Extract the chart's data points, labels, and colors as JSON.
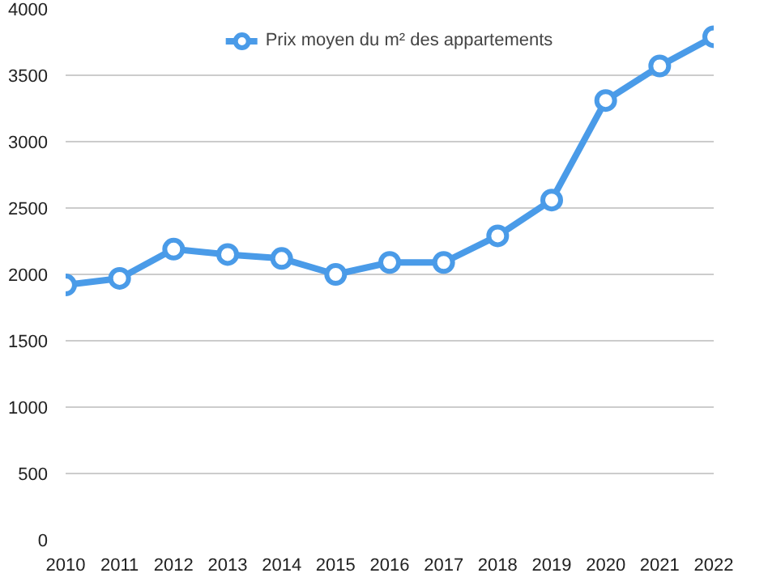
{
  "chart_data": {
    "type": "line",
    "x": [
      2010,
      2011,
      2012,
      2013,
      2014,
      2015,
      2016,
      2017,
      2018,
      2019,
      2020,
      2021,
      2022
    ],
    "series": [
      {
        "name": "Prix moyen du m² des appartements",
        "color": "#4a9be8",
        "values": [
          1920,
          1970,
          2190,
          2150,
          2120,
          2000,
          2090,
          2090,
          2290,
          2560,
          3310,
          3570,
          3790
        ]
      }
    ],
    "xlim": [
      2010,
      2022
    ],
    "xticks": [
      2010,
      2011,
      2012,
      2013,
      2014,
      2015,
      2016,
      2017,
      2018,
      2019,
      2020,
      2021,
      2022
    ],
    "ylim": [
      0,
      4000
    ],
    "yticks": [
      0,
      500,
      1000,
      1500,
      2000,
      2500,
      3000,
      3500,
      4000
    ],
    "grid": "y",
    "legend": "top",
    "marker": "circle",
    "line_style": "solid"
  }
}
